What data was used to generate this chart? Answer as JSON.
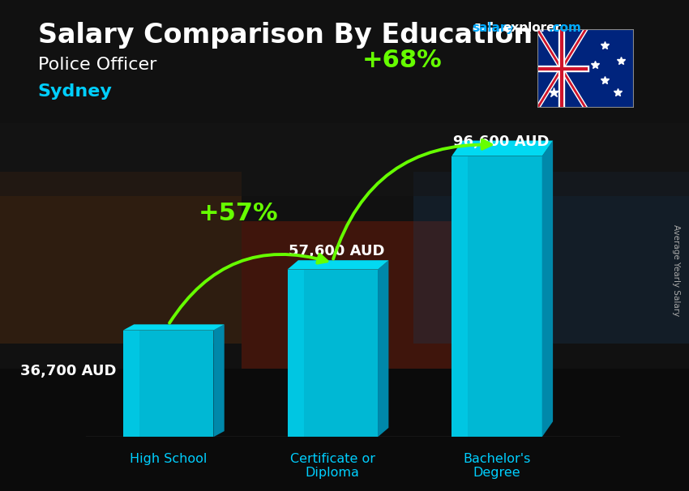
{
  "title_main": "Salary Comparison By Education",
  "subtitle1": "Police Officer",
  "subtitle2": "Sydney",
  "side_label": "Average Yearly Salary",
  "categories": [
    "High School",
    "Certificate or\nDiploma",
    "Bachelor's\nDegree"
  ],
  "values": [
    36700,
    57600,
    96600
  ],
  "labels": [
    "36,700 AUD",
    "57,600 AUD",
    "96,600 AUD"
  ],
  "pct_labels": [
    "+57%",
    "+68%"
  ],
  "bar_color_face": "#00b8d4",
  "bar_color_light": "#00d4f0",
  "bar_color_side": "#0088aa",
  "bar_color_top": "#00e5ff",
  "bg_color": "#1c1c1c",
  "title_color": "#ffffff",
  "subtitle1_color": "#ffffff",
  "subtitle2_color": "#00cfff",
  "label_color": "#ffffff",
  "pct_color": "#66ff00",
  "arrow_color": "#44dd00",
  "x_label_color": "#00cfff",
  "salary_color": "#00aaff",
  "explorer_color": "#ffffff",
  "com_color": "#00aaff",
  "bar_positions": [
    1.0,
    3.0,
    5.0
  ],
  "bar_width": 1.1,
  "ylim": [
    0,
    130000
  ],
  "figsize": [
    8.5,
    6.06
  ],
  "label_fontsize": 13,
  "pct_fontsize": 22,
  "title_fontsize": 24,
  "sub1_fontsize": 16,
  "sub2_fontsize": 16,
  "xlim": [
    0.0,
    6.5
  ]
}
